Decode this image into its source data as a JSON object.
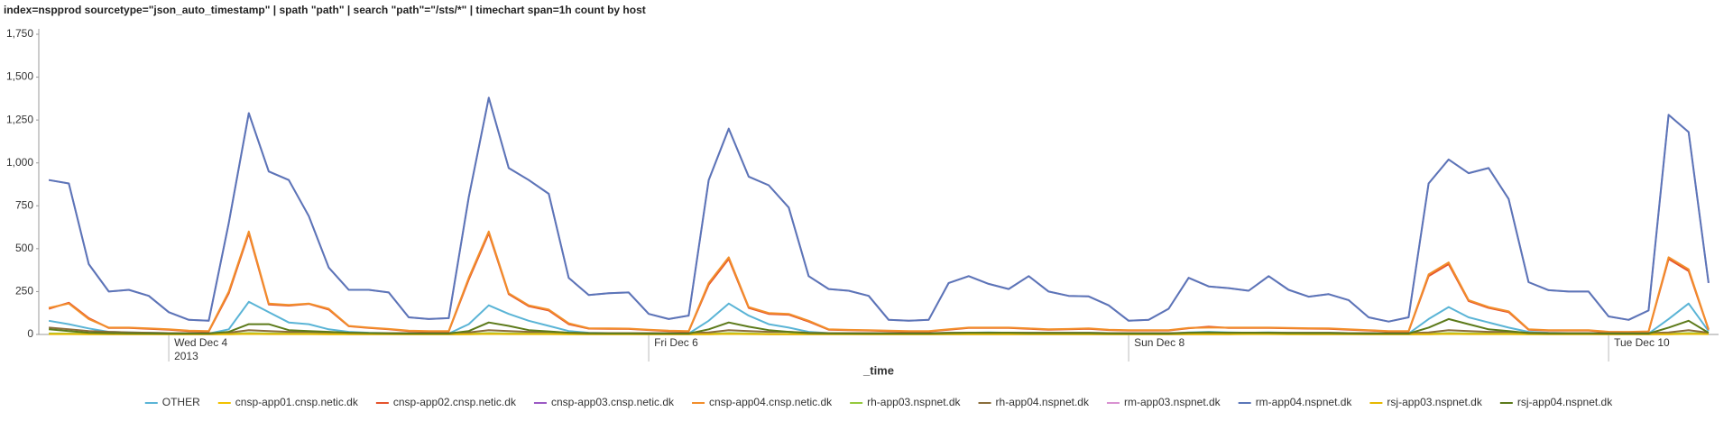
{
  "chart_data": {
    "type": "line",
    "title": "index=nspprod sourcetype=\"json_auto_timestamp\" | spath \"path\" | search \"path\"=\"/sts/*\" | timechart span=1h count by host",
    "x_label": "_time",
    "x_year": "2013",
    "categories": [
      null,
      null,
      null,
      null,
      null,
      null,
      "Wed Dec 4",
      null,
      null,
      null,
      null,
      null,
      null,
      null,
      null,
      null,
      null,
      null,
      null,
      null,
      null,
      null,
      null,
      null,
      null,
      null,
      null,
      null,
      null,
      null,
      "Fri Dec 6",
      null,
      null,
      null,
      null,
      null,
      null,
      null,
      null,
      null,
      null,
      null,
      null,
      null,
      null,
      null,
      null,
      null,
      null,
      null,
      null,
      null,
      null,
      null,
      "Sun Dec 8",
      null,
      null,
      null,
      null,
      null,
      null,
      null,
      null,
      null,
      null,
      null,
      null,
      null,
      null,
      null,
      null,
      null,
      null,
      null,
      null,
      null,
      null,
      null,
      "Tue Dec 10",
      null,
      null,
      null,
      null,
      null
    ],
    "ylim": [
      0,
      1750
    ],
    "yticks": [
      0,
      250,
      500,
      750,
      {
        "value": 1000,
        "label": "1,000"
      },
      {
        "value": 1250,
        "label": "1,250"
      },
      {
        "value": 1500,
        "label": "1,500"
      },
      {
        "value": 1750,
        "label": "1,750"
      }
    ],
    "grid": false,
    "legend": "bottom",
    "series": [
      {
        "name": "OTHER",
        "color": "#5ab4d6",
        "values": [
          80,
          60,
          35,
          15,
          12,
          10,
          8,
          6,
          5,
          30,
          190,
          130,
          70,
          60,
          30,
          15,
          10,
          8,
          6,
          5,
          5,
          60,
          170,
          120,
          80,
          50,
          20,
          10,
          8,
          7,
          6,
          5,
          5,
          80,
          180,
          110,
          60,
          40,
          15,
          8,
          6,
          5,
          5,
          5,
          5,
          10,
          10,
          12,
          10,
          10,
          10,
          10,
          10,
          8,
          5,
          5,
          5,
          12,
          15,
          12,
          10,
          12,
          10,
          10,
          10,
          8,
          6,
          5,
          5,
          90,
          160,
          100,
          70,
          40,
          15,
          10,
          8,
          8,
          6,
          5,
          5,
          90,
          180,
          20
        ]
      },
      {
        "name": "cnsp-app01.cnsp.netic.dk",
        "color": "#f2c200",
        "values": [
          3,
          3,
          2,
          2,
          2,
          2,
          1,
          1,
          1,
          2,
          4,
          3,
          3,
          3,
          2,
          2,
          2,
          2,
          1,
          1,
          1,
          2,
          4,
          3,
          3,
          3,
          2,
          2,
          2,
          2,
          1,
          1,
          1,
          2,
          4,
          3,
          2,
          2,
          2,
          2,
          2,
          1,
          1,
          1,
          1,
          2,
          2,
          2,
          2,
          2,
          2,
          2,
          2,
          1,
          1,
          1,
          1,
          2,
          2,
          2,
          3,
          3,
          2,
          2,
          2,
          2,
          1,
          1,
          1,
          2,
          4,
          3,
          3,
          3,
          2,
          2,
          2,
          2,
          1,
          1,
          1,
          2,
          4,
          3
        ]
      },
      {
        "name": "cnsp-app02.cnsp.netic.dk",
        "color": "#e5532d",
        "values": [
          150,
          185,
          95,
          38,
          38,
          33,
          28,
          20,
          18,
          240,
          590,
          175,
          168,
          178,
          145,
          48,
          38,
          30,
          20,
          18,
          18,
          320,
          590,
          235,
          165,
          140,
          60,
          34,
          33,
          32,
          26,
          20,
          18,
          290,
          440,
          155,
          120,
          115,
          75,
          28,
          25,
          23,
          20,
          18,
          18,
          28,
          38,
          38,
          38,
          33,
          28,
          30,
          33,
          26,
          23,
          23,
          23,
          36,
          45,
          38,
          38,
          38,
          36,
          34,
          33,
          28,
          23,
          18,
          18,
          340,
          410,
          195,
          155,
          130,
          28,
          23,
          23,
          23,
          14,
          13,
          16,
          440,
          370,
          28
        ]
      },
      {
        "name": "cnsp-app03.cnsp.netic.dk",
        "color": "#9b59c4",
        "values": [
          4,
          4,
          3,
          2,
          2,
          2,
          1,
          1,
          1,
          3,
          5,
          4,
          4,
          4,
          3,
          2,
          2,
          2,
          1,
          1,
          1,
          3,
          5,
          4,
          4,
          4,
          3,
          2,
          2,
          2,
          1,
          1,
          1,
          3,
          5,
          4,
          2,
          2,
          2,
          2,
          2,
          1,
          1,
          1,
          1,
          2,
          2,
          2,
          2,
          2,
          2,
          2,
          2,
          1,
          1,
          1,
          1,
          2,
          2,
          2,
          4,
          4,
          3,
          2,
          2,
          2,
          1,
          1,
          1,
          3,
          5,
          4,
          4,
          4,
          3,
          2,
          2,
          2,
          1,
          1,
          1,
          3,
          5,
          4
        ]
      },
      {
        "name": "cnsp-app04.cnsp.netic.dk",
        "color": "#f28e2b",
        "values": [
          155,
          180,
          90,
          40,
          40,
          35,
          30,
          22,
          20,
          250,
          600,
          180,
          172,
          180,
          150,
          50,
          40,
          32,
          22,
          20,
          20,
          330,
          600,
          240,
          170,
          145,
          65,
          36,
          35,
          34,
          28,
          22,
          20,
          300,
          450,
          160,
          125,
          120,
          80,
          30,
          27,
          25,
          22,
          20,
          20,
          30,
          40,
          40,
          40,
          35,
          30,
          32,
          35,
          28,
          25,
          25,
          25,
          38,
          40,
          40,
          40,
          40,
          38,
          36,
          35,
          30,
          25,
          20,
          20,
          350,
          420,
          200,
          160,
          135,
          30,
          25,
          25,
          25,
          16,
          15,
          18,
          450,
          380,
          30
        ]
      },
      {
        "name": "rh-app03.nspnet.dk",
        "color": "#95c93d",
        "values": [
          6,
          5,
          4,
          3,
          3,
          3,
          2,
          2,
          2,
          4,
          8,
          6,
          6,
          5,
          4,
          3,
          3,
          3,
          2,
          2,
          2,
          4,
          8,
          6,
          6,
          5,
          4,
          3,
          3,
          3,
          2,
          2,
          2,
          4,
          8,
          6,
          3,
          3,
          3,
          3,
          3,
          2,
          2,
          2,
          2,
          3,
          3,
          3,
          3,
          3,
          3,
          3,
          3,
          2,
          2,
          2,
          2,
          3,
          3,
          3,
          6,
          5,
          4,
          3,
          3,
          3,
          2,
          2,
          2,
          4,
          8,
          6,
          6,
          5,
          4,
          3,
          3,
          3,
          2,
          2,
          2,
          4,
          8,
          6
        ]
      },
      {
        "name": "rh-app04.nspnet.dk",
        "color": "#8a6d3b",
        "values": [
          40,
          30,
          20,
          15,
          12,
          10,
          8,
          8,
          8,
          10,
          25,
          20,
          15,
          15,
          12,
          10,
          8,
          8,
          8,
          8,
          8,
          12,
          25,
          20,
          15,
          15,
          10,
          8,
          8,
          8,
          8,
          8,
          8,
          12,
          25,
          20,
          15,
          15,
          10,
          8,
          8,
          8,
          8,
          8,
          8,
          10,
          10,
          10,
          10,
          10,
          10,
          10,
          10,
          8,
          8,
          8,
          8,
          10,
          10,
          10,
          10,
          10,
          10,
          10,
          10,
          8,
          8,
          8,
          8,
          12,
          25,
          20,
          15,
          15,
          10,
          8,
          8,
          8,
          8,
          8,
          8,
          12,
          25,
          10
        ]
      },
      {
        "name": "rm-app03.nspnet.dk",
        "color": "#d992d1",
        "values": [
          900,
          880,
          410,
          250,
          260,
          225,
          130,
          85,
          80,
          650,
          1290,
          950,
          900,
          690,
          390,
          260,
          260,
          245,
          100,
          90,
          95,
          800,
          1380,
          970,
          900,
          820,
          330,
          230,
          240,
          245,
          120,
          90,
          110,
          900,
          1200,
          920,
          870,
          740,
          340,
          265,
          255,
          225,
          85,
          80,
          85,
          300,
          340,
          295,
          265,
          340,
          250,
          225,
          222,
          170,
          80,
          85,
          150,
          330,
          280,
          270,
          255,
          340,
          260,
          220,
          235,
          200,
          100,
          75,
          100,
          880,
          1020,
          940,
          970,
          790,
          305,
          258,
          250,
          250,
          105,
          85,
          140,
          1280,
          1180,
          300
        ]
      },
      {
        "name": "rm-app04.nspnet.dk",
        "color": "#5a76b8",
        "values": [
          900,
          880,
          410,
          250,
          260,
          225,
          130,
          85,
          80,
          650,
          1290,
          950,
          900,
          690,
          390,
          260,
          260,
          245,
          100,
          90,
          95,
          800,
          1380,
          970,
          900,
          820,
          330,
          230,
          240,
          245,
          120,
          90,
          110,
          900,
          1200,
          920,
          870,
          740,
          340,
          265,
          255,
          225,
          85,
          80,
          85,
          300,
          340,
          295,
          265,
          340,
          250,
          225,
          222,
          170,
          80,
          85,
          150,
          330,
          280,
          270,
          255,
          340,
          260,
          220,
          235,
          200,
          100,
          75,
          100,
          880,
          1020,
          940,
          970,
          790,
          305,
          258,
          250,
          250,
          105,
          85,
          140,
          1280,
          1180,
          300
        ]
      },
      {
        "name": "rsj-app03.nspnet.dk",
        "color": "#e6b800",
        "values": [
          2,
          2,
          1,
          1,
          1,
          1,
          1,
          1,
          1,
          1,
          3,
          2,
          2,
          2,
          1,
          1,
          1,
          1,
          1,
          1,
          1,
          1,
          3,
          2,
          2,
          2,
          1,
          1,
          1,
          1,
          1,
          1,
          1,
          1,
          3,
          2,
          1,
          1,
          1,
          1,
          1,
          1,
          1,
          1,
          1,
          1,
          1,
          1,
          1,
          1,
          1,
          1,
          1,
          1,
          1,
          1,
          1,
          1,
          1,
          1,
          2,
          2,
          1,
          1,
          1,
          1,
          1,
          1,
          1,
          1,
          3,
          2,
          2,
          2,
          1,
          1,
          1,
          1,
          1,
          1,
          1,
          1,
          3,
          2
        ]
      },
      {
        "name": "rsj-app04.nspnet.dk",
        "color": "#5c7a1a",
        "values": [
          30,
          20,
          10,
          8,
          7,
          6,
          5,
          5,
          5,
          15,
          60,
          60,
          25,
          20,
          15,
          10,
          8,
          6,
          5,
          5,
          5,
          20,
          70,
          50,
          25,
          18,
          10,
          7,
          6,
          6,
          5,
          5,
          5,
          30,
          70,
          45,
          25,
          15,
          8,
          6,
          5,
          5,
          5,
          5,
          5,
          8,
          10,
          10,
          10,
          8,
          8,
          8,
          8,
          6,
          5,
          5,
          5,
          10,
          12,
          10,
          10,
          10,
          8,
          8,
          8,
          6,
          5,
          5,
          5,
          40,
          90,
          60,
          30,
          20,
          8,
          6,
          6,
          6,
          5,
          5,
          5,
          40,
          80,
          10
        ]
      }
    ]
  }
}
